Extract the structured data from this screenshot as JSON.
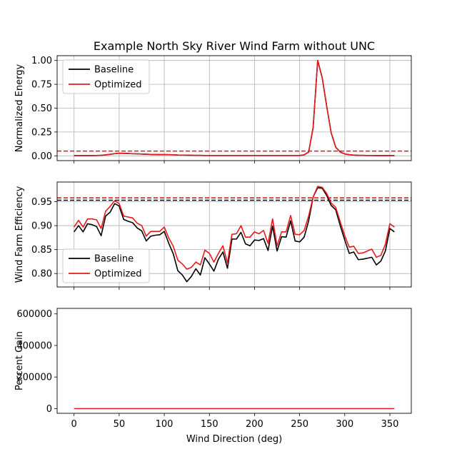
{
  "title": "Example North Sky River Wind Farm without UNC",
  "colors": {
    "baseline": "#000000",
    "optimized": "#e8181b",
    "grid": "#b0b0b0"
  },
  "chart_data": [
    {
      "type": "line",
      "ylabel": "Normalized Energy",
      "xlim": [
        -18.75,
        373.75
      ],
      "ylim": [
        -0.05,
        1.05
      ],
      "yticks": [
        0.0,
        0.25,
        0.5,
        0.75,
        1.0
      ],
      "ytick_labels": [
        "0.00",
        "0.25",
        "0.50",
        "0.75",
        "1.00"
      ],
      "xticks": [
        0,
        50,
        100,
        150,
        200,
        250,
        300,
        350
      ],
      "grid": true,
      "legend": "top-left",
      "legend_entries": [
        "Baseline",
        "Optimized"
      ],
      "x": [
        0,
        5,
        10,
        15,
        20,
        25,
        30,
        35,
        40,
        45,
        50,
        55,
        60,
        65,
        70,
        75,
        80,
        85,
        90,
        95,
        100,
        105,
        110,
        115,
        120,
        125,
        130,
        135,
        140,
        145,
        150,
        155,
        160,
        165,
        170,
        175,
        180,
        185,
        190,
        195,
        200,
        205,
        210,
        215,
        220,
        225,
        230,
        235,
        240,
        245,
        250,
        255,
        260,
        265,
        270,
        275,
        280,
        285,
        290,
        295,
        300,
        305,
        310,
        315,
        320,
        325,
        330,
        335,
        340,
        345,
        350,
        355
      ],
      "series": [
        {
          "name": "Baseline",
          "values": [
            0.003,
            0.003,
            0.003,
            0.003,
            0.003,
            0.004,
            0.006,
            0.01,
            0.016,
            0.023,
            0.027,
            0.026,
            0.024,
            0.022,
            0.021,
            0.019,
            0.017,
            0.015,
            0.014,
            0.013,
            0.013,
            0.012,
            0.011,
            0.009,
            0.008,
            0.007,
            0.006,
            0.005,
            0.005,
            0.004,
            0.004,
            0.004,
            0.004,
            0.004,
            0.004,
            0.004,
            0.004,
            0.004,
            0.004,
            0.004,
            0.004,
            0.004,
            0.004,
            0.004,
            0.004,
            0.004,
            0.004,
            0.004,
            0.004,
            0.004,
            0.004,
            0.01,
            0.04,
            0.3,
            1.0,
            0.82,
            0.52,
            0.24,
            0.09,
            0.04,
            0.02,
            0.012,
            0.008,
            0.006,
            0.005,
            0.004,
            0.004,
            0.003,
            0.003,
            0.003,
            0.003,
            0.003
          ]
        },
        {
          "name": "Optimized",
          "values": [
            0.003,
            0.003,
            0.003,
            0.003,
            0.003,
            0.004,
            0.006,
            0.01,
            0.016,
            0.023,
            0.027,
            0.026,
            0.024,
            0.022,
            0.021,
            0.019,
            0.017,
            0.015,
            0.014,
            0.013,
            0.013,
            0.012,
            0.011,
            0.009,
            0.008,
            0.007,
            0.006,
            0.005,
            0.005,
            0.004,
            0.004,
            0.004,
            0.004,
            0.004,
            0.004,
            0.004,
            0.004,
            0.004,
            0.004,
            0.004,
            0.004,
            0.004,
            0.004,
            0.004,
            0.004,
            0.004,
            0.004,
            0.004,
            0.004,
            0.004,
            0.004,
            0.01,
            0.04,
            0.3,
            1.0,
            0.82,
            0.52,
            0.24,
            0.09,
            0.04,
            0.02,
            0.012,
            0.008,
            0.006,
            0.005,
            0.004,
            0.004,
            0.003,
            0.003,
            0.003,
            0.003,
            0.003
          ]
        }
      ],
      "hlines": [
        {
          "series": "Optimized",
          "y": 0.05,
          "style": "dashed"
        }
      ]
    },
    {
      "type": "line",
      "ylabel": "Wind Farm Efficiency",
      "xlim": [
        -18.75,
        373.75
      ],
      "ylim": [
        0.772,
        0.991
      ],
      "yticks": [
        0.8,
        0.85,
        0.9,
        0.95
      ],
      "ytick_labels": [
        "0.80",
        "0.85",
        "0.90",
        "0.95"
      ],
      "xticks": [
        0,
        50,
        100,
        150,
        200,
        250,
        300,
        350
      ],
      "grid": true,
      "legend": "lower-left",
      "legend_entries": [
        "Baseline",
        "Optimized"
      ],
      "x": [
        0,
        5,
        10,
        15,
        20,
        25,
        30,
        35,
        40,
        45,
        50,
        55,
        60,
        65,
        70,
        75,
        80,
        85,
        90,
        95,
        100,
        105,
        110,
        115,
        120,
        125,
        130,
        135,
        140,
        145,
        150,
        155,
        160,
        165,
        170,
        175,
        180,
        185,
        190,
        195,
        200,
        205,
        210,
        215,
        220,
        225,
        230,
        235,
        240,
        245,
        250,
        255,
        260,
        265,
        270,
        275,
        280,
        285,
        290,
        295,
        300,
        305,
        310,
        315,
        320,
        325,
        330,
        335,
        340,
        345,
        350,
        355
      ],
      "series": [
        {
          "name": "Baseline",
          "values": [
            0.887,
            0.9,
            0.887,
            0.904,
            0.902,
            0.898,
            0.879,
            0.92,
            0.928,
            0.946,
            0.941,
            0.913,
            0.909,
            0.906,
            0.895,
            0.889,
            0.868,
            0.878,
            0.88,
            0.881,
            0.888,
            0.863,
            0.841,
            0.806,
            0.797,
            0.783,
            0.794,
            0.81,
            0.797,
            0.833,
            0.82,
            0.805,
            0.83,
            0.845,
            0.811,
            0.872,
            0.872,
            0.886,
            0.862,
            0.858,
            0.87,
            0.869,
            0.873,
            0.848,
            0.899,
            0.847,
            0.877,
            0.876,
            0.91,
            0.868,
            0.866,
            0.876,
            0.91,
            0.96,
            0.979,
            0.978,
            0.963,
            0.942,
            0.933,
            0.9,
            0.87,
            0.842,
            0.845,
            0.829,
            0.83,
            0.832,
            0.834,
            0.818,
            0.826,
            0.847,
            0.894,
            0.887
          ]
        },
        {
          "name": "Optimized",
          "values": [
            0.897,
            0.911,
            0.897,
            0.914,
            0.914,
            0.912,
            0.894,
            0.93,
            0.94,
            0.952,
            0.946,
            0.92,
            0.918,
            0.916,
            0.905,
            0.9,
            0.878,
            0.888,
            0.888,
            0.888,
            0.897,
            0.874,
            0.857,
            0.828,
            0.82,
            0.809,
            0.813,
            0.824,
            0.818,
            0.849,
            0.842,
            0.824,
            0.842,
            0.858,
            0.822,
            0.882,
            0.883,
            0.9,
            0.876,
            0.876,
            0.887,
            0.883,
            0.89,
            0.863,
            0.914,
            0.858,
            0.887,
            0.887,
            0.921,
            0.882,
            0.881,
            0.89,
            0.92,
            0.96,
            0.982,
            0.98,
            0.967,
            0.947,
            0.938,
            0.908,
            0.879,
            0.855,
            0.857,
            0.842,
            0.843,
            0.847,
            0.851,
            0.834,
            0.838,
            0.861,
            0.904,
            0.897
          ]
        }
      ],
      "hlines": [
        {
          "series": "Baseline",
          "y": 0.953,
          "style": "dashed"
        },
        {
          "series": "Optimized",
          "y": 0.958,
          "style": "dashed"
        }
      ]
    },
    {
      "type": "line",
      "ylabel": "Percent Gain",
      "xlabel": "Wind Direction (deg)",
      "xlim": [
        -18.75,
        373.75
      ],
      "ylim": [
        -30000,
        635000
      ],
      "yticks": [
        0,
        200000,
        400000,
        600000
      ],
      "ytick_labels": [
        "0",
        "200000",
        "400000",
        "600000"
      ],
      "xticks": [
        0,
        50,
        100,
        150,
        200,
        250,
        300,
        350
      ],
      "xtick_labels": [
        "0",
        "50",
        "100",
        "150",
        "200",
        "250",
        "300",
        "350"
      ],
      "grid": false,
      "x": [
        0,
        355
      ],
      "series": [
        {
          "values": [
            0,
            0
          ]
        }
      ]
    }
  ]
}
